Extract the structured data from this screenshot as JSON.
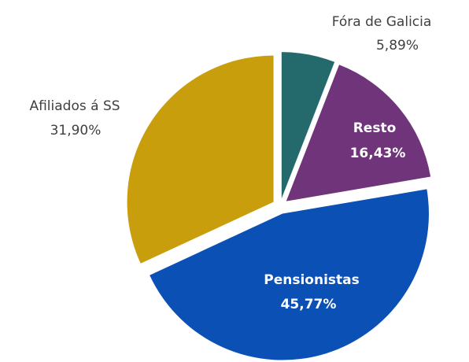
{
  "chart_data": {
    "type": "pie",
    "categories": [
      "Fóra de Galicia",
      "Resto",
      "Pensionistas",
      "Afiliados á SS"
    ],
    "values": [
      5.89,
      16.43,
      45.77,
      31.9
    ],
    "value_labels": [
      "5,89%",
      "16,43%",
      "45,77%",
      "31,90%"
    ],
    "colors": [
      "#246a6c",
      "#6f3479",
      "#0a50b5",
      "#c89e0c"
    ]
  }
}
